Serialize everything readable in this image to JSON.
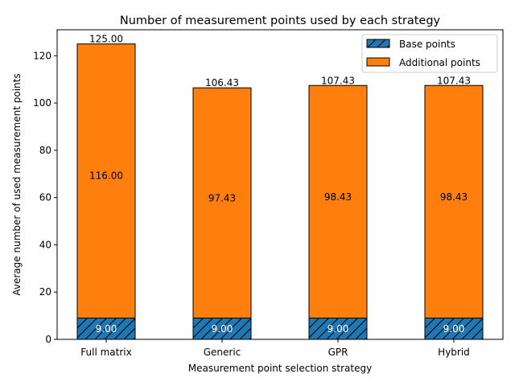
{
  "chart_data": {
    "type": "bar",
    "stacked": true,
    "title": "Number of measurement points used by each strategy",
    "xlabel": "Measurement point selection strategy",
    "ylabel": "Average number of used measurement points",
    "categories": [
      "Full matrix",
      "Generic",
      "GPR",
      "Hybrid"
    ],
    "ylim": [
      0,
      131
    ],
    "yticks": [
      0,
      20,
      40,
      60,
      80,
      100,
      120
    ],
    "grid": false,
    "legend_position": "top-right",
    "series": [
      {
        "name": "Base points",
        "values": [
          9.0,
          9.0,
          9.0,
          9.0
        ],
        "color": "#1f77b4",
        "hatch": "diagonal",
        "labels": [
          "9.00",
          "9.00",
          "9.00",
          "9.00"
        ]
      },
      {
        "name": "Additional points",
        "values": [
          116.0,
          97.43,
          98.43,
          98.43
        ],
        "color": "#ff7f0e",
        "labels": [
          "116.00",
          "97.43",
          "98.43",
          "98.43"
        ]
      }
    ],
    "totals": [
      "125.00",
      "106.43",
      "107.43",
      "107.43"
    ]
  }
}
